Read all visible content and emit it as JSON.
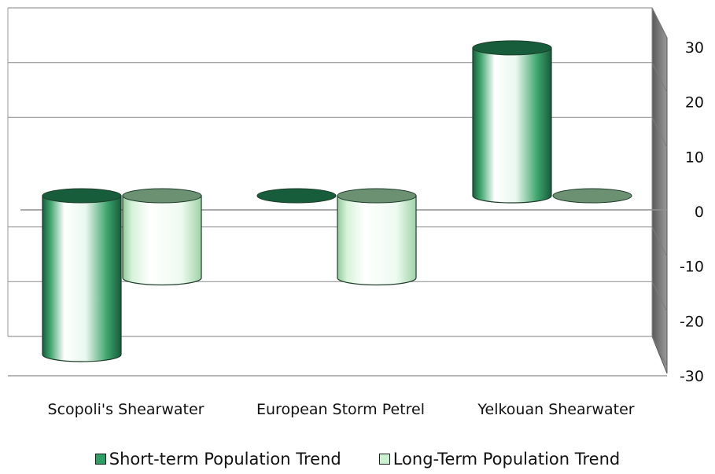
{
  "chart_data": {
    "type": "bar",
    "categories": [
      "Scopoli's Shearwater",
      "European Storm Petrel",
      "Yelkouan Shearwater"
    ],
    "series": [
      {
        "name": "Short-term Population Trend",
        "values": [
          -29,
          0,
          27
        ],
        "color": "#2f9e64"
      },
      {
        "name": "Long-Term Population Trend",
        "values": [
          -15,
          -15,
          0
        ],
        "color": "#c9f0cf"
      }
    ],
    "ylim": [
      -30,
      30
    ],
    "yticks": [
      30,
      20,
      10,
      0,
      -10,
      -20,
      -30
    ],
    "grid": true,
    "legend_position": "bottom"
  }
}
